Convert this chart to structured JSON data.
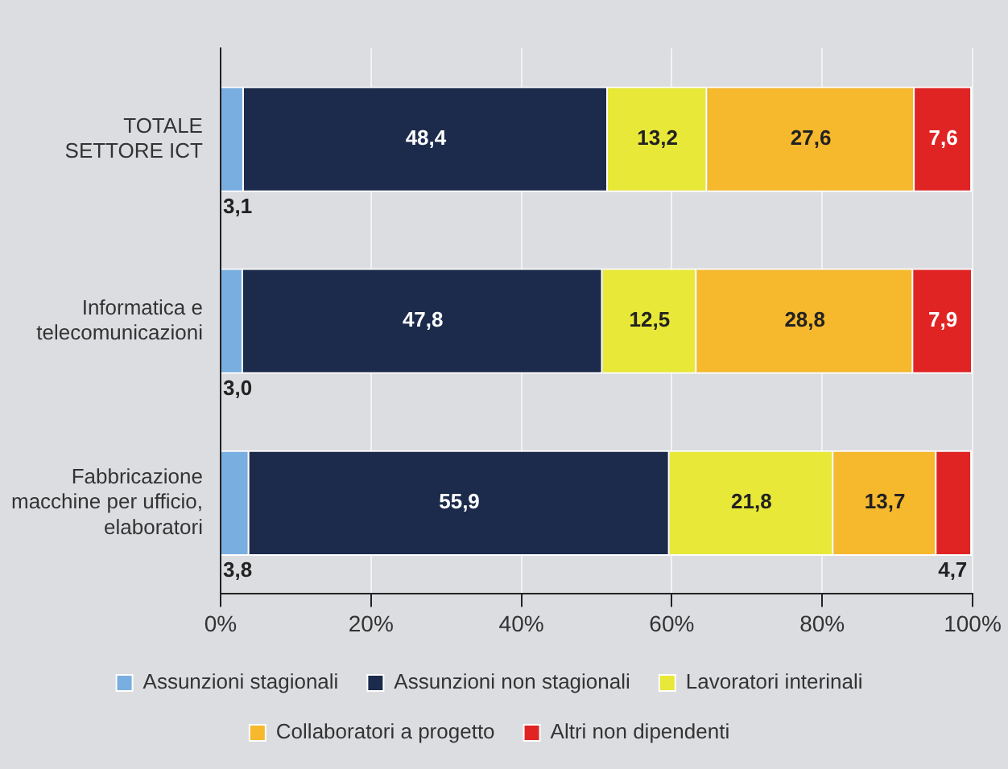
{
  "chart_data": {
    "type": "bar",
    "orientation": "horizontal",
    "stacked": true,
    "categories": [
      "TOTALE\nSETTORE ICT",
      "Informatica e\ntelecomunicazioni",
      "Fabbricazione\nmacchine per ufficio,\nelaboratori"
    ],
    "series": [
      {
        "name": "Assunzioni stagionali",
        "color": "#79aee0",
        "values": [
          3.1,
          3.0,
          3.8
        ],
        "value_labels": [
          "3,1",
          "3,0",
          "3,8"
        ]
      },
      {
        "name": "Assunzioni non stagionali",
        "color": "#1c2b4c",
        "values": [
          48.4,
          47.8,
          55.9
        ],
        "value_labels": [
          "48,4",
          "47,8",
          "55,9"
        ]
      },
      {
        "name": "Lavoratori interinali",
        "color": "#e8e838",
        "values": [
          13.2,
          12.5,
          21.8
        ],
        "value_labels": [
          "13,2",
          "12,5",
          "21,8"
        ]
      },
      {
        "name": "Collaboratori a progetto",
        "color": "#f6b82c",
        "values": [
          27.6,
          28.8,
          13.7
        ],
        "value_labels": [
          "27,6",
          "28,8",
          "13,7"
        ]
      },
      {
        "name": "Altri non dipendenti",
        "color": "#e02424",
        "values": [
          7.6,
          7.9,
          4.7
        ],
        "value_labels": [
          "7,6",
          "7,9",
          "4,7"
        ]
      }
    ],
    "xlim": [
      0,
      100
    ],
    "xticks": [
      {
        "value": 0,
        "label": "0%"
      },
      {
        "value": 20,
        "label": "20%"
      },
      {
        "value": 40,
        "label": "40%"
      },
      {
        "value": 60,
        "label": "60%"
      },
      {
        "value": 80,
        "label": "80%"
      },
      {
        "value": 100,
        "label": "100%"
      }
    ],
    "grid": "x",
    "legend": "bottom"
  }
}
